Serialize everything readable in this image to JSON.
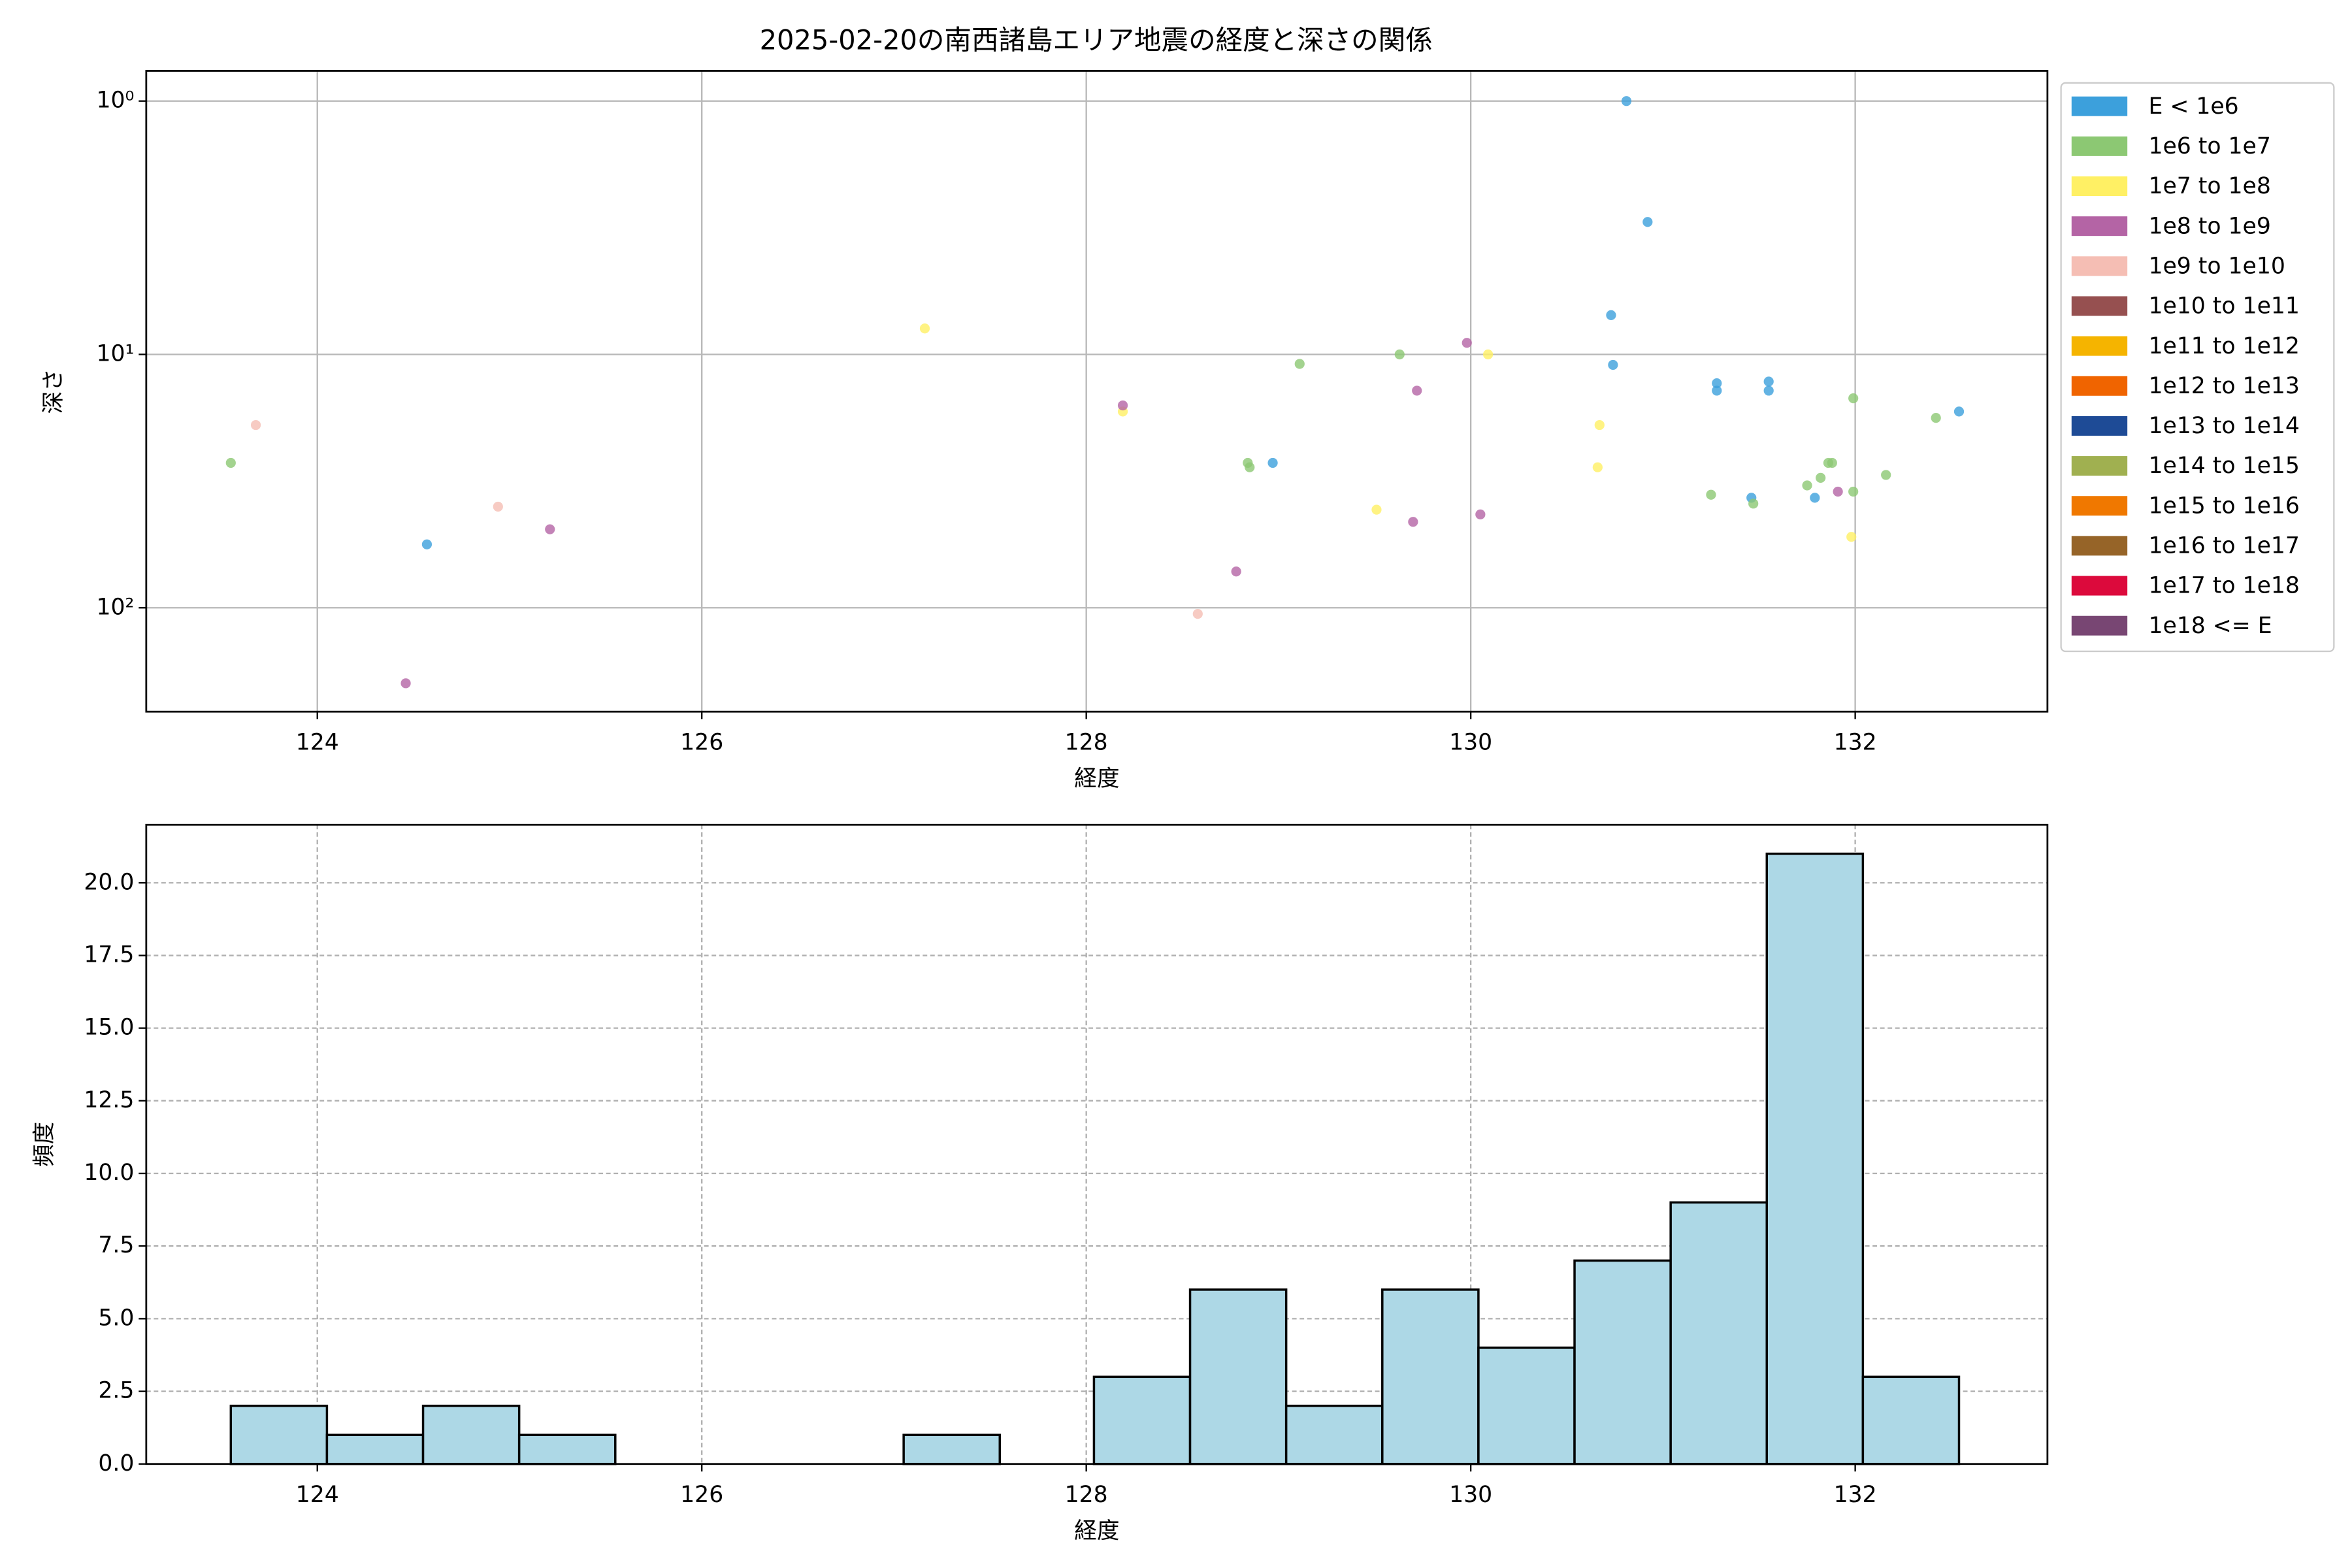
{
  "chart_data": [
    {
      "type": "scatter",
      "title": "2025-02-20の南西諸島エリア地震の経度と深さの関係",
      "xlabel": "経度",
      "ylabel": "深さ",
      "xlim": [
        123.11,
        133.0
      ],
      "ylim": [
        257,
        0.76
      ],
      "yscale": "log",
      "xticks": [
        124,
        126,
        128,
        130,
        132
      ],
      "yticks": [
        {
          "value": 1,
          "label": "10⁰"
        },
        {
          "value": 10,
          "label": "10¹"
        },
        {
          "value": 100,
          "label": "10²"
        }
      ],
      "grid": true,
      "legend": "outside-right",
      "series": [
        {
          "name": "E < 1e6",
          "color": "#3ca0dc",
          "x": [
            130.81,
            130.92,
            130.73,
            130.74,
            131.28,
            131.28,
            131.55,
            131.55,
            132.54,
            128.97,
            131.46,
            131.79,
            124.57
          ],
          "values": [
            1.0,
            3.0,
            7.0,
            11.0,
            13.0,
            13.9,
            12.8,
            13.9,
            16.8,
            26.8,
            36.8,
            36.8,
            56.2
          ]
        },
        {
          "name": "1e6 to 1e7",
          "color": "#8cc873",
          "x": [
            123.55,
            129.11,
            129.63,
            128.84,
            128.85,
            131.25,
            131.47,
            131.99,
            132.42,
            132.16,
            131.75,
            131.82,
            131.86,
            131.88,
            131.99
          ],
          "values": [
            26.8,
            10.9,
            10.0,
            26.8,
            27.9,
            35.8,
            38.8,
            14.9,
            17.8,
            29.9,
            32.9,
            30.7,
            26.8,
            26.8,
            34.8
          ]
        },
        {
          "name": "1e7 to 1e8",
          "color": "#fff064",
          "x": [
            127.16,
            128.19,
            130.09,
            130.67,
            130.66,
            129.51,
            131.98
          ],
          "values": [
            7.9,
            16.8,
            10.0,
            19.0,
            27.9,
            41.0,
            52.5
          ]
        },
        {
          "name": "1e8 to 1e9",
          "color": "#b464a5",
          "x": [
            129.98,
            129.72,
            128.19,
            131.91,
            129.7,
            130.05,
            125.21,
            128.78,
            124.46
          ],
          "values": [
            9.0,
            13.9,
            15.9,
            34.8,
            45.8,
            42.8,
            49.0,
            71.9,
            198.6
          ]
        },
        {
          "name": "1e9 to 1e10",
          "color": "#f5beb4",
          "x": [
            123.68,
            124.94,
            128.58
          ],
          "values": [
            19.0,
            39.9,
            105.7
          ]
        },
        {
          "name": "1e10 to 1e11",
          "color": "#965050",
          "x": [],
          "values": []
        },
        {
          "name": "1e11 to 1e12",
          "color": "#f5b400",
          "x": [],
          "values": []
        },
        {
          "name": "1e12 to 1e13",
          "color": "#f06400",
          "x": [],
          "values": []
        },
        {
          "name": "1e13 to 1e14",
          "color": "#1e4b96",
          "x": [],
          "values": []
        },
        {
          "name": "1e14 to 1e15",
          "color": "#a0b050",
          "x": [],
          "values": []
        },
        {
          "name": "1e15 to 1e16",
          "color": "#f07800",
          "x": [],
          "values": []
        },
        {
          "name": "1e16 to 1e17",
          "color": "#966428",
          "x": [],
          "values": []
        },
        {
          "name": "1e17 to 1e18",
          "color": "#dc0a3c",
          "x": [],
          "values": []
        },
        {
          "name": "1e18 <= E",
          "color": "#784673",
          "x": [],
          "values": []
        }
      ]
    },
    {
      "type": "histogram",
      "xlabel": "経度",
      "ylabel": "頻度",
      "xlim": [
        123.11,
        133.0
      ],
      "ylim": [
        0,
        22.0
      ],
      "xticks": [
        124,
        126,
        128,
        130,
        132
      ],
      "yticks": [
        {
          "value": 0,
          "label": "0.0"
        },
        {
          "value": 2.5,
          "label": "2.5"
        },
        {
          "value": 5,
          "label": "5.0"
        },
        {
          "value": 7.5,
          "label": "7.5"
        },
        {
          "value": 10,
          "label": "10.0"
        },
        {
          "value": 12.5,
          "label": "12.5"
        },
        {
          "value": 15,
          "label": "15.0"
        },
        {
          "value": 17.5,
          "label": "17.5"
        },
        {
          "value": 20,
          "label": "20.0"
        }
      ],
      "grid": true,
      "grid_style": "dashed",
      "color": "#add8e6",
      "edgecolor": "#000000",
      "bins": [
        123.55,
        124.05,
        124.55,
        125.05,
        125.55,
        126.05,
        126.55,
        127.05,
        127.55,
        128.04,
        128.54,
        129.04,
        129.54,
        130.04,
        130.54,
        131.04,
        131.54,
        132.04,
        132.54
      ],
      "counts": [
        2,
        1,
        2,
        1,
        0,
        0,
        0,
        1,
        0,
        3,
        6,
        2,
        6,
        4,
        7,
        9,
        21,
        3
      ]
    }
  ]
}
